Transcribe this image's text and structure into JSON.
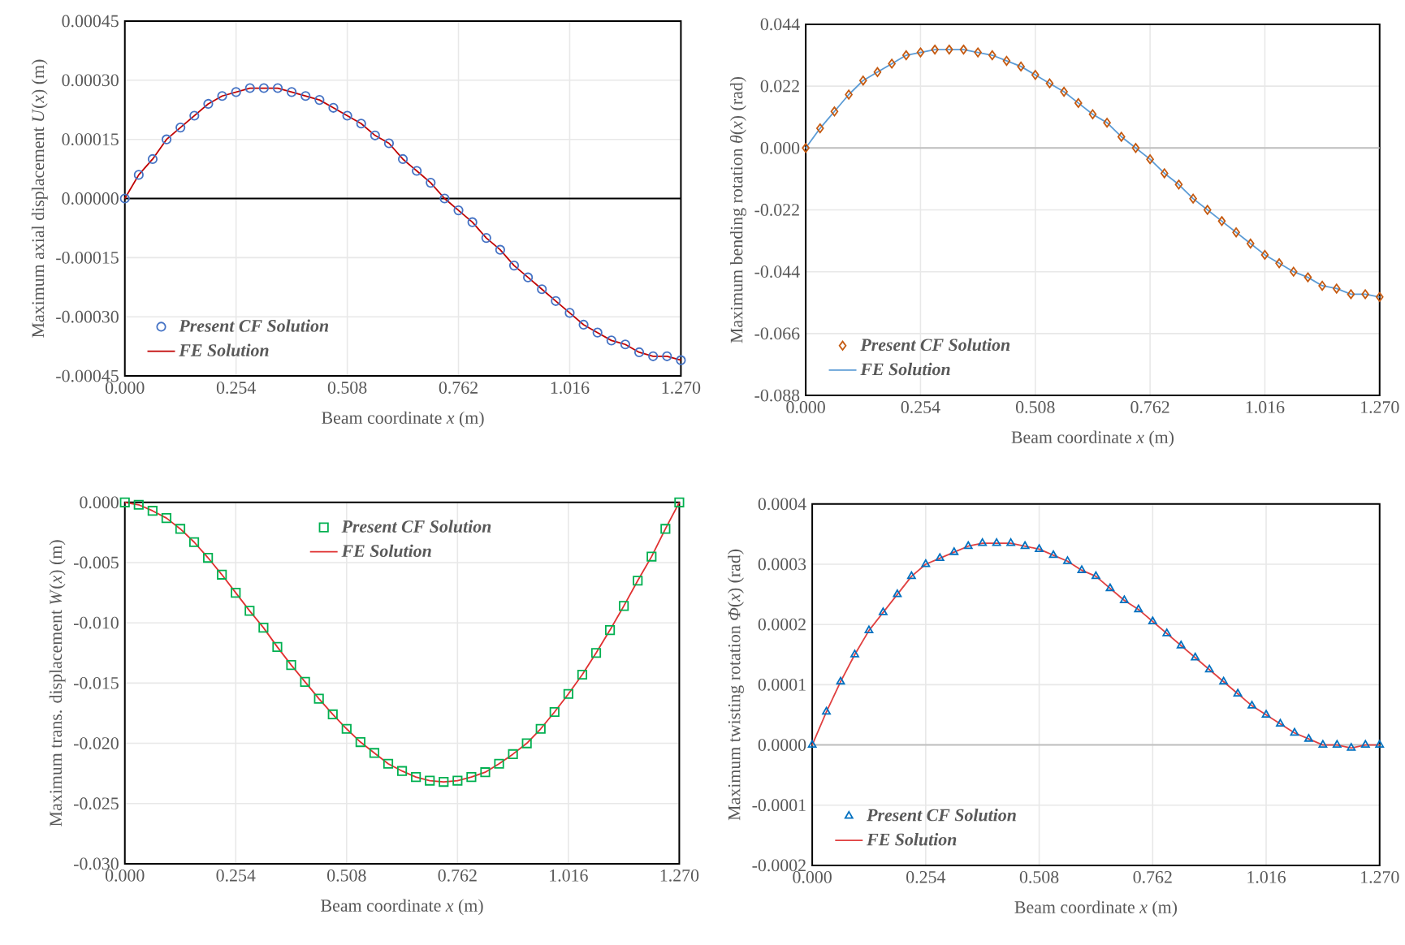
{
  "chart_data": [
    {
      "type": "scatter",
      "xlabel": "Beam coordinate *x* (m)",
      "ylabel": "Maximum axial displacement *U*(*x*) (m)",
      "x": [
        0,
        0.03175,
        0.0635,
        0.09525,
        0.127,
        0.15875,
        0.1905,
        0.22225,
        0.254,
        0.28575,
        0.3175,
        0.34925,
        0.381,
        0.41275,
        0.4445,
        0.47625,
        0.508,
        0.53975,
        0.5715,
        0.60325,
        0.635,
        0.66675,
        0.6985,
        0.73025,
        0.762,
        0.79375,
        0.8255,
        0.85725,
        0.889,
        0.92075,
        0.9525,
        0.98425,
        1.016,
        1.04775,
        1.0795,
        1.11125,
        1.143,
        1.17475,
        1.2065,
        1.23825,
        1.27
      ],
      "xlim": [
        0,
        1.27
      ],
      "xticks": [
        {
          "value": 0,
          "label": "0.000"
        },
        {
          "value": 0.254,
          "label": "0.254"
        },
        {
          "value": 0.508,
          "label": "0.508"
        },
        {
          "value": 0.762,
          "label": "0.762"
        },
        {
          "value": 1.016,
          "label": "1.016"
        },
        {
          "value": 1.27,
          "label": "1.270"
        }
      ],
      "ylim": [
        -0.00045,
        0.00045
      ],
      "yticks": [
        {
          "value": -0.00045,
          "label": "-0.00045"
        },
        {
          "value": -0.0003,
          "label": "-0.00030"
        },
        {
          "value": -0.00015,
          "label": "-0.00015"
        },
        {
          "value": 0,
          "label": "0.00000"
        },
        {
          "value": 0.00015,
          "label": "0.00015"
        },
        {
          "value": 0.0003,
          "label": "0.00030"
        },
        {
          "value": 0.00045,
          "label": "0.00045"
        }
      ],
      "grid": true,
      "legend": "bottom left",
      "ref_lines": [
        {
          "axis": "y",
          "value": 0,
          "color": "#000000"
        }
      ],
      "series": [
        {
          "name": "Present CF Solution",
          "marker": "circle",
          "color": "#4472c4",
          "values": [
            0,
            6e-05,
            0.0001,
            0.00015,
            0.00018,
            0.00021,
            0.00024,
            0.00026,
            0.00027,
            0.00028,
            0.00028,
            0.00028,
            0.00027,
            0.00026,
            0.00025,
            0.00023,
            0.00021,
            0.00019,
            0.00016,
            0.00014,
            0.0001,
            7e-05,
            4e-05,
            0,
            -3e-05,
            -6e-05,
            -0.0001,
            -0.00013,
            -0.00017,
            -0.0002,
            -0.00023,
            -0.00026,
            -0.00029,
            -0.00032,
            -0.00034,
            -0.00036,
            -0.00037,
            -0.00039,
            -0.0004,
            -0.0004,
            -0.00041
          ]
        },
        {
          "name": "FE Solution",
          "type": "line",
          "color": "#c00000",
          "values": [
            0,
            6e-05,
            0.0001,
            0.00015,
            0.00018,
            0.00021,
            0.00024,
            0.00026,
            0.00027,
            0.00028,
            0.00028,
            0.00028,
            0.00027,
            0.00026,
            0.00025,
            0.00023,
            0.00021,
            0.00019,
            0.00016,
            0.00014,
            0.0001,
            7e-05,
            4e-05,
            0,
            -3e-05,
            -6e-05,
            -0.0001,
            -0.00013,
            -0.00017,
            -0.0002,
            -0.00023,
            -0.00026,
            -0.00029,
            -0.00032,
            -0.00034,
            -0.00036,
            -0.00037,
            -0.00039,
            -0.0004,
            -0.0004,
            -0.00041
          ]
        }
      ]
    },
    {
      "type": "scatter",
      "xlabel": "Beam coordinate *x* (m)",
      "ylabel": "Maximum bending rotation *θ*(*x*) (rad)",
      "x": [
        0,
        0.03175,
        0.0635,
        0.09525,
        0.127,
        0.15875,
        0.1905,
        0.22225,
        0.254,
        0.28575,
        0.3175,
        0.34925,
        0.381,
        0.41275,
        0.4445,
        0.47625,
        0.508,
        0.53975,
        0.5715,
        0.60325,
        0.635,
        0.66675,
        0.6985,
        0.73025,
        0.762,
        0.79375,
        0.8255,
        0.85725,
        0.889,
        0.92075,
        0.9525,
        0.98425,
        1.016,
        1.04775,
        1.0795,
        1.11125,
        1.143,
        1.17475,
        1.2065,
        1.23825,
        1.27
      ],
      "xlim": [
        0,
        1.27
      ],
      "xticks": [
        {
          "value": 0,
          "label": "0.000"
        },
        {
          "value": 0.254,
          "label": "0.254"
        },
        {
          "value": 0.508,
          "label": "0.508"
        },
        {
          "value": 0.762,
          "label": "0.762"
        },
        {
          "value": 1.016,
          "label": "1.016"
        },
        {
          "value": 1.27,
          "label": "1.270"
        }
      ],
      "ylim": [
        -0.088,
        0.044
      ],
      "yticks": [
        {
          "value": -0.088,
          "label": "-0.088"
        },
        {
          "value": -0.066,
          "label": "-0.066"
        },
        {
          "value": -0.044,
          "label": "-0.044"
        },
        {
          "value": -0.022,
          "label": "-0.022"
        },
        {
          "value": 0,
          "label": "0.000"
        },
        {
          "value": 0.022,
          "label": "0.022"
        },
        {
          "value": 0.044,
          "label": "0.044"
        }
      ],
      "grid": true,
      "legend": "bottom left",
      "ref_lines": [
        {
          "axis": "y",
          "value": 0,
          "color": "#bfbfbf"
        }
      ],
      "series": [
        {
          "name": "Present CF Solution",
          "marker": "diamond",
          "color": "#c55a11",
          "values": [
            0,
            0.007,
            0.013,
            0.019,
            0.024,
            0.027,
            0.03,
            0.033,
            0.034,
            0.035,
            0.035,
            0.035,
            0.034,
            0.033,
            0.031,
            0.029,
            0.026,
            0.023,
            0.02,
            0.016,
            0.012,
            0.009,
            0.004,
            0,
            -0.004,
            -0.009,
            -0.013,
            -0.018,
            -0.022,
            -0.026,
            -0.03,
            -0.034,
            -0.038,
            -0.041,
            -0.044,
            -0.046,
            -0.049,
            -0.05,
            -0.052,
            -0.052,
            -0.053
          ]
        },
        {
          "name": "FE Solution",
          "type": "line",
          "color": "#5b9bd5",
          "values": [
            0,
            0.007,
            0.013,
            0.019,
            0.024,
            0.027,
            0.03,
            0.033,
            0.034,
            0.035,
            0.035,
            0.035,
            0.034,
            0.033,
            0.031,
            0.029,
            0.026,
            0.023,
            0.02,
            0.016,
            0.012,
            0.009,
            0.004,
            0,
            -0.004,
            -0.009,
            -0.013,
            -0.018,
            -0.022,
            -0.026,
            -0.03,
            -0.034,
            -0.038,
            -0.041,
            -0.044,
            -0.046,
            -0.049,
            -0.05,
            -0.052,
            -0.052,
            -0.053
          ]
        }
      ]
    },
    {
      "type": "scatter",
      "xlabel": "Beam coordinate *x* (m)",
      "ylabel": "Maximum trans. displacement *W*(*x*) (m)",
      "x": [
        0,
        0.03175,
        0.0635,
        0.09525,
        0.127,
        0.15875,
        0.1905,
        0.22225,
        0.254,
        0.28575,
        0.3175,
        0.34925,
        0.381,
        0.41275,
        0.4445,
        0.47625,
        0.508,
        0.53975,
        0.5715,
        0.60325,
        0.635,
        0.66675,
        0.6985,
        0.73025,
        0.762,
        0.79375,
        0.8255,
        0.85725,
        0.889,
        0.92075,
        0.9525,
        0.98425,
        1.016,
        1.04775,
        1.0795,
        1.11125,
        1.143,
        1.17475,
        1.2065,
        1.23825,
        1.27
      ],
      "xlim": [
        0,
        1.27
      ],
      "xticks": [
        {
          "value": 0,
          "label": "0.000"
        },
        {
          "value": 0.254,
          "label": "0.254"
        },
        {
          "value": 0.508,
          "label": "0.508"
        },
        {
          "value": 0.762,
          "label": "0.762"
        },
        {
          "value": 1.016,
          "label": "1.016"
        },
        {
          "value": 1.27,
          "label": "1.270"
        }
      ],
      "ylim": [
        -0.03,
        0
      ],
      "yticks": [
        {
          "value": -0.03,
          "label": "-0.030"
        },
        {
          "value": -0.025,
          "label": "-0.025"
        },
        {
          "value": -0.02,
          "label": "-0.020"
        },
        {
          "value": -0.015,
          "label": "-0.015"
        },
        {
          "value": -0.01,
          "label": "-0.010"
        },
        {
          "value": -0.005,
          "label": "-0.005"
        },
        {
          "value": 0,
          "label": "0.000"
        }
      ],
      "grid": true,
      "legend": "top",
      "series": [
        {
          "name": "Present CF Solution",
          "marker": "square",
          "color": "#00b050",
          "values": [
            0,
            -0.0002,
            -0.0007,
            -0.0013,
            -0.0022,
            -0.0033,
            -0.0046,
            -0.006,
            -0.0075,
            -0.009,
            -0.0104,
            -0.012,
            -0.0135,
            -0.0149,
            -0.0163,
            -0.0176,
            -0.0188,
            -0.0199,
            -0.0208,
            -0.0217,
            -0.0223,
            -0.0228,
            -0.0231,
            -0.0232,
            -0.0231,
            -0.0228,
            -0.0224,
            -0.0217,
            -0.0209,
            -0.02,
            -0.0188,
            -0.0174,
            -0.0159,
            -0.0143,
            -0.0125,
            -0.0106,
            -0.0086,
            -0.0065,
            -0.0045,
            -0.0022,
            0
          ]
        },
        {
          "name": "FE Solution",
          "type": "line",
          "color": "#e03030",
          "values": [
            0,
            -0.0002,
            -0.0007,
            -0.0013,
            -0.0022,
            -0.0033,
            -0.0046,
            -0.006,
            -0.0075,
            -0.009,
            -0.0104,
            -0.012,
            -0.0135,
            -0.0149,
            -0.0163,
            -0.0176,
            -0.0188,
            -0.0199,
            -0.0208,
            -0.0217,
            -0.0223,
            -0.0228,
            -0.0231,
            -0.0232,
            -0.0231,
            -0.0228,
            -0.0224,
            -0.0217,
            -0.0209,
            -0.02,
            -0.0188,
            -0.0174,
            -0.0159,
            -0.0143,
            -0.0125,
            -0.0106,
            -0.0086,
            -0.0065,
            -0.0045,
            -0.0022,
            0
          ]
        }
      ]
    },
    {
      "type": "scatter",
      "xlabel": "Beam coordinate *x* (m)",
      "ylabel": "Maximum twisting rotation *Φ*(*x*) (rad)",
      "x": [
        0,
        0.03175,
        0.0635,
        0.09525,
        0.127,
        0.15875,
        0.1905,
        0.22225,
        0.254,
        0.28575,
        0.3175,
        0.34925,
        0.381,
        0.41275,
        0.4445,
        0.47625,
        0.508,
        0.53975,
        0.5715,
        0.60325,
        0.635,
        0.66675,
        0.6985,
        0.73025,
        0.762,
        0.79375,
        0.8255,
        0.85725,
        0.889,
        0.92075,
        0.9525,
        0.98425,
        1.016,
        1.04775,
        1.0795,
        1.11125,
        1.143,
        1.17475,
        1.2065,
        1.23825,
        1.27
      ],
      "xlim": [
        0,
        1.27
      ],
      "xticks": [
        {
          "value": 0,
          "label": "0.000"
        },
        {
          "value": 0.254,
          "label": "0.254"
        },
        {
          "value": 0.508,
          "label": "0.508"
        },
        {
          "value": 0.762,
          "label": "0.762"
        },
        {
          "value": 1.016,
          "label": "1.016"
        },
        {
          "value": 1.27,
          "label": "1.270"
        }
      ],
      "ylim": [
        -0.0002,
        0.0004
      ],
      "yticks": [
        {
          "value": -0.0002,
          "label": "-0.0002"
        },
        {
          "value": -0.0001,
          "label": "-0.0001"
        },
        {
          "value": 0,
          "label": "0.0000"
        },
        {
          "value": 0.0001,
          "label": "0.0001"
        },
        {
          "value": 0.0002,
          "label": "0.0002"
        },
        {
          "value": 0.0003,
          "label": "0.0003"
        },
        {
          "value": 0.0004,
          "label": "0.0004"
        }
      ],
      "grid": true,
      "legend": "bottom left",
      "ref_lines": [
        {
          "axis": "y",
          "value": 0,
          "color": "#bfbfbf"
        }
      ],
      "series": [
        {
          "name": "Present CF Solution",
          "marker": "triangle",
          "color": "#0070c0",
          "values": [
            0,
            5.5e-05,
            0.000105,
            0.00015,
            0.00019,
            0.00022,
            0.00025,
            0.00028,
            0.0003,
            0.00031,
            0.00032,
            0.00033,
            0.000335,
            0.000335,
            0.000335,
            0.00033,
            0.000325,
            0.000315,
            0.000305,
            0.00029,
            0.00028,
            0.00026,
            0.00024,
            0.000225,
            0.000205,
            0.000185,
            0.000165,
            0.000145,
            0.000125,
            0.000105,
            8.5e-05,
            6.5e-05,
            5e-05,
            3.5e-05,
            2e-05,
            1e-05,
            0,
            0,
            -5e-06,
            0,
            0
          ]
        },
        {
          "name": "FE Solution",
          "type": "line",
          "color": "#e04040",
          "values": [
            0,
            5.5e-05,
            0.000105,
            0.00015,
            0.00019,
            0.00022,
            0.00025,
            0.00028,
            0.0003,
            0.00031,
            0.00032,
            0.00033,
            0.000335,
            0.000335,
            0.000335,
            0.00033,
            0.000325,
            0.000315,
            0.000305,
            0.00029,
            0.00028,
            0.00026,
            0.00024,
            0.000225,
            0.000205,
            0.000185,
            0.000165,
            0.000145,
            0.000125,
            0.000105,
            8.5e-05,
            6.5e-05,
            5e-05,
            3.5e-05,
            2e-05,
            1e-05,
            0,
            0,
            -5e-06,
            0,
            0
          ]
        }
      ]
    }
  ]
}
